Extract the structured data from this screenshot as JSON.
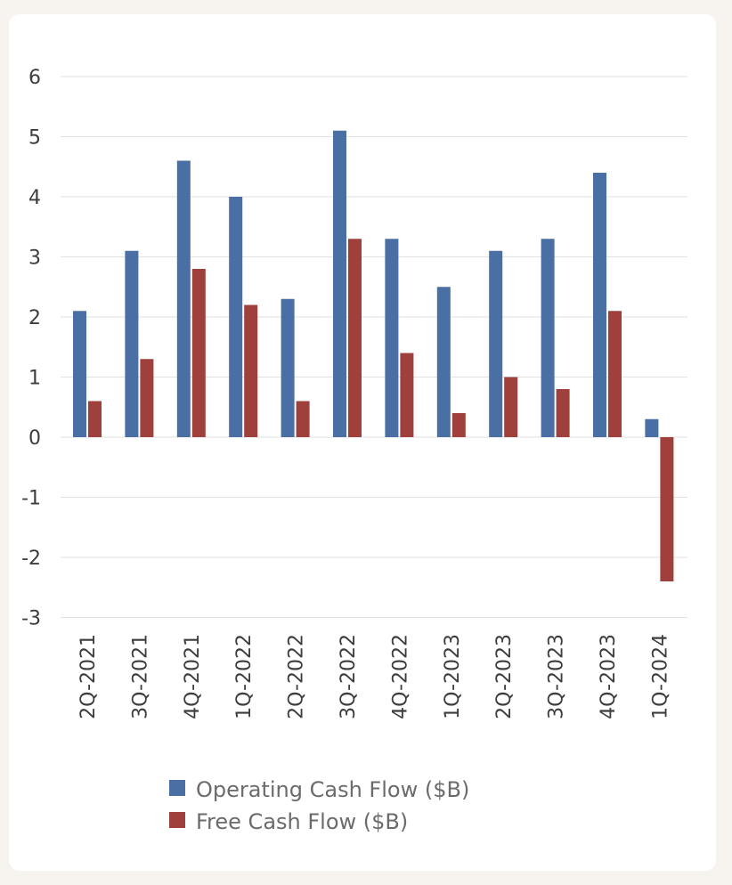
{
  "chart_data": {
    "type": "bar",
    "categories": [
      "2Q-2021",
      "3Q-2021",
      "4Q-2021",
      "1Q-2022",
      "2Q-2022",
      "3Q-2022",
      "4Q-2022",
      "1Q-2023",
      "2Q-2023",
      "3Q-2023",
      "4Q-2023",
      "1Q-2024"
    ],
    "series": [
      {
        "name": "Operating Cash Flow ($B)",
        "color": "#4a6fa5",
        "values": [
          2.1,
          3.1,
          4.6,
          4.0,
          2.3,
          5.1,
          3.3,
          2.5,
          3.1,
          3.3,
          4.4,
          0.3
        ]
      },
      {
        "name": "Free Cash Flow ($B)",
        "color": "#a0403c",
        "values": [
          0.6,
          1.3,
          2.8,
          2.2,
          0.6,
          3.3,
          1.4,
          0.4,
          1.0,
          0.8,
          2.1,
          -2.4
        ]
      }
    ],
    "ylim": [
      -3,
      6
    ],
    "yticks": [
      6,
      5,
      4,
      3,
      2,
      1,
      0,
      -1,
      -2,
      -3
    ],
    "ytick_labels": [
      "6",
      "5",
      "4",
      "3",
      "2",
      "1",
      "0",
      "-1",
      "-2",
      "-3"
    ],
    "grid": true,
    "legend_position": "bottom"
  }
}
